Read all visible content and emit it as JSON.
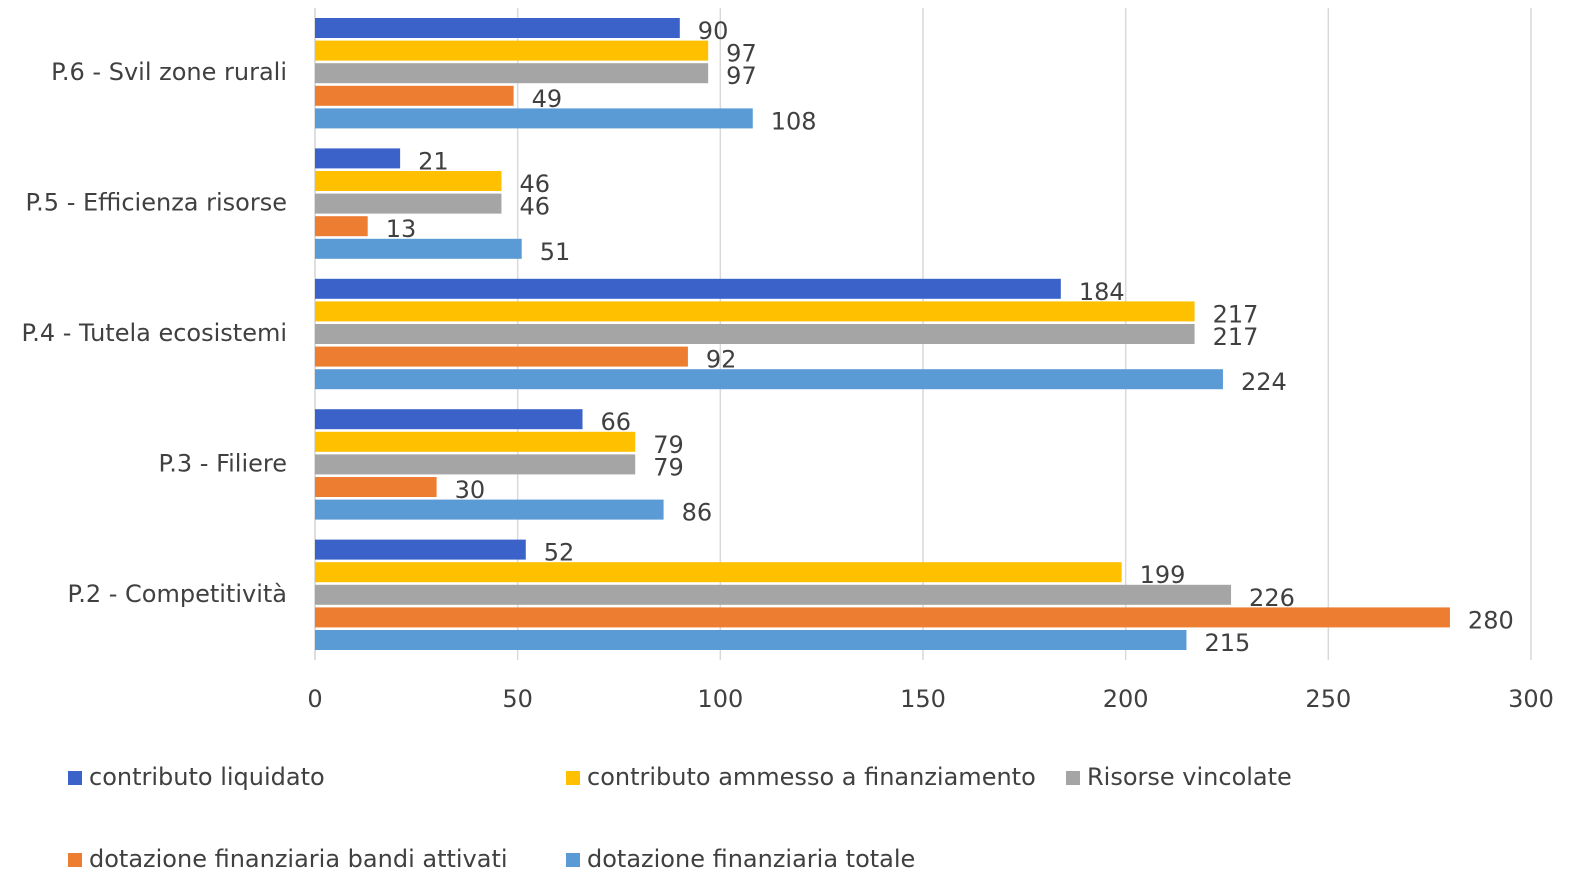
{
  "chart_data": {
    "type": "hbar",
    "categories": [
      "P.2 - Competitività",
      "P.3 - Filiere",
      "P.4 - Tutela ecosistemi",
      "P.5 - Efficienza risorse",
      "P.6 - Svil zone rurali"
    ],
    "series": [
      {
        "name": "contributo liquidato",
        "color": "#3a62c9",
        "values": [
          52,
          66,
          184,
          21,
          90
        ]
      },
      {
        "name": "contributo ammesso a finanziamento",
        "color": "#ffc000",
        "values": [
          199,
          79,
          217,
          46,
          97
        ]
      },
      {
        "name": "Risorse vincolate",
        "color": "#a5a5a5",
        "values": [
          226,
          79,
          217,
          46,
          97
        ]
      },
      {
        "name": "dotazione finanziaria bandi attivati",
        "color": "#ed7d31",
        "values": [
          280,
          30,
          92,
          13,
          49
        ]
      },
      {
        "name": "dotazione finanziaria totale",
        "color": "#5b9bd5",
        "values": [
          215,
          86,
          224,
          51,
          108
        ]
      }
    ],
    "xlim": [
      0,
      300
    ],
    "xticks": [
      0,
      50,
      100,
      150,
      200,
      250,
      300
    ],
    "grid": true,
    "legend": "bottom"
  }
}
